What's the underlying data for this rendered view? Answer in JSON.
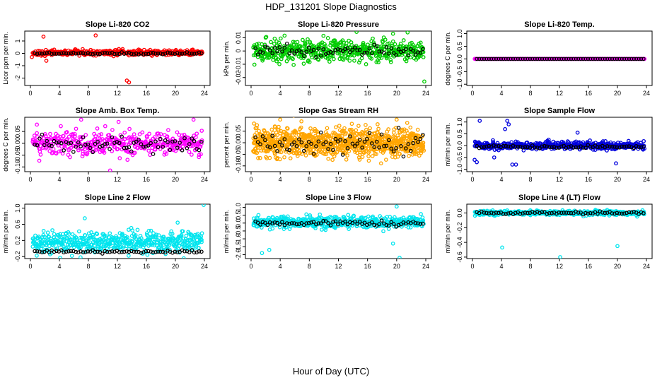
{
  "page": {
    "title": "HDP_131201  Slope Diagnostics",
    "x_label": "Hour of Day (UTC)"
  },
  "chart_data": [
    {
      "type": "scatter",
      "title": "Slope Li-820 CO2",
      "ylabel": "Licor ppm per min.",
      "xlim": [
        0,
        24
      ],
      "ylim": [
        -2.6,
        1.8
      ],
      "yticks": [
        -2,
        -1,
        0,
        1
      ],
      "ytick_labels": [
        "-2",
        "-1",
        "0",
        "1"
      ],
      "xticks": [
        0,
        4,
        8,
        12,
        16,
        20,
        24
      ],
      "xtick_labels": [
        "0",
        "4",
        "8",
        "12",
        "16",
        "20",
        "24"
      ],
      "color": "#ff0000",
      "noise": {
        "n": 420,
        "spread": 0.18,
        "center": 0.05
      },
      "outliers": [
        [
          1.8,
          1.35
        ],
        [
          9.0,
          1.45
        ],
        [
          2.2,
          -0.6
        ],
        [
          13.3,
          -2.2
        ],
        [
          13.6,
          -2.35
        ],
        [
          0.2,
          -0.3
        ]
      ],
      "black_points": {
        "n": 70,
        "spread": 0.07,
        "center": 0.0
      }
    },
    {
      "type": "scatter",
      "title": "Slope Li-820 Pressure",
      "ylabel": "kPa per min.",
      "xlim": [
        0,
        24
      ],
      "ylim": [
        -0.026,
        0.015
      ],
      "yticks": [
        -0.02,
        -0.01,
        0,
        0.01
      ],
      "ytick_labels": [
        "-0.02",
        "-0.01",
        "0",
        "0.01"
      ],
      "xticks": [
        0,
        4,
        8,
        12,
        16,
        20,
        24
      ],
      "xtick_labels": [
        "0",
        "4",
        "8",
        "12",
        "16",
        "20",
        "24"
      ],
      "color": "#00cc00",
      "noise": {
        "n": 520,
        "spread": 0.0065,
        "center": 0.0
      },
      "outliers": [
        [
          23.8,
          -0.023
        ],
        [
          21.5,
          0.014
        ],
        [
          19.5,
          0.013
        ]
      ],
      "black_points": {
        "n": 70,
        "spread": 0.0035,
        "center": 0.0
      }
    },
    {
      "type": "scatter",
      "title": "Slope Li-820 Temp.",
      "ylabel": "degrees C per min.",
      "xlim": [
        0,
        24
      ],
      "ylim": [
        -1.05,
        1.1
      ],
      "yticks": [
        -1.0,
        -0.5,
        0.0,
        0.5,
        1.0
      ],
      "ytick_labels": [
        "-1.0",
        "-0.5",
        "0.0",
        "0.5",
        "1.0"
      ],
      "xticks": [
        0,
        4,
        8,
        12,
        16,
        20,
        24
      ],
      "xtick_labels": [
        "0",
        "4",
        "8",
        "12",
        "16",
        "20",
        "24"
      ],
      "color": "#ff00ff",
      "noise": {
        "n": 240,
        "spread": 0.0,
        "center": 0.0
      },
      "outliers": [],
      "black_points": {
        "n": 70,
        "spread": 0.0,
        "center": 0.0
      }
    },
    {
      "type": "scatter",
      "title": "Slope Amb. Box Temp.",
      "ylabel": "degrees C per min.",
      "xlim": [
        0,
        24
      ],
      "ylim": [
        -0.12,
        0.11
      ],
      "yticks": [
        -0.1,
        -0.05,
        0.0,
        0.05
      ],
      "ytick_labels": [
        "-0.10",
        "-0.05",
        "0.00",
        "0.05"
      ],
      "xticks": [
        0,
        4,
        8,
        12,
        16,
        20,
        24
      ],
      "xtick_labels": [
        "0",
        "4",
        "8",
        "12",
        "16",
        "20",
        "24"
      ],
      "color": "#ff00ff",
      "noise": {
        "n": 420,
        "spread": 0.045,
        "center": 0.0
      },
      "outliers": [
        [
          11.0,
          -0.115
        ],
        [
          7.0,
          0.1
        ],
        [
          22.5,
          0.1
        ]
      ],
      "black_points": {
        "n": 70,
        "spread": 0.03,
        "center": -0.005
      }
    },
    {
      "type": "scatter",
      "title": "Slope Gas Stream RH",
      "ylabel": "percent per min.",
      "xlim": [
        0,
        24
      ],
      "ylim": [
        -0.125,
        0.11
      ],
      "yticks": [
        -0.1,
        -0.05,
        0.0,
        0.05
      ],
      "ytick_labels": [
        "-0.10",
        "-0.05",
        "0.00",
        "0.05"
      ],
      "xticks": [
        0,
        4,
        8,
        12,
        16,
        20,
        24
      ],
      "xtick_labels": [
        "0",
        "4",
        "8",
        "12",
        "16",
        "20",
        "24"
      ],
      "color": "#ffa500",
      "noise": {
        "n": 900,
        "spread": 0.05,
        "center": 0.0
      },
      "outliers": [
        [
          4.0,
          0.1
        ],
        [
          20.0,
          0.1
        ]
      ],
      "black_points": {
        "n": 70,
        "spread": 0.04,
        "center": -0.01
      }
    },
    {
      "type": "scatter",
      "title": "Slope Sample Flow",
      "ylabel": "ml/min per min.",
      "xlim": [
        0,
        24
      ],
      "ylim": [
        -1.1,
        1.2
      ],
      "yticks": [
        -1.0,
        -0.5,
        0.0,
        0.5,
        1.0
      ],
      "ytick_labels": [
        "-1.0",
        "-0.5",
        "0.0",
        "0.5",
        "1.0"
      ],
      "xticks": [
        0,
        4,
        8,
        12,
        16,
        20,
        24
      ],
      "xtick_labels": [
        "0",
        "4",
        "8",
        "12",
        "16",
        "20",
        "24"
      ],
      "color": "#0000dd",
      "noise": {
        "n": 480,
        "spread": 0.13,
        "center": 0.0
      },
      "outliers": [
        [
          1.0,
          1.05
        ],
        [
          4.8,
          1.05
        ],
        [
          5.0,
          0.9
        ],
        [
          4.5,
          0.7
        ],
        [
          0.3,
          -0.6
        ],
        [
          0.6,
          -0.7
        ],
        [
          5.5,
          -0.8
        ],
        [
          6.0,
          -0.8
        ],
        [
          19.8,
          -0.75
        ],
        [
          3.0,
          -0.5
        ],
        [
          14.5,
          0.55
        ]
      ],
      "black_points": {
        "n": 70,
        "spread": 0.05,
        "center": -0.05
      }
    },
    {
      "type": "scatter",
      "title": "Slope Line 2 Flow",
      "ylabel": "ml/min per min.",
      "xlim": [
        0,
        24
      ],
      "ylim": [
        -0.25,
        1.1
      ],
      "yticks": [
        -0.2,
        0.2,
        0.6,
        1.0
      ],
      "ytick_labels": [
        "-0.2",
        "0.2",
        "0.6",
        "1.0"
      ],
      "xticks": [
        0,
        4,
        8,
        12,
        16,
        20,
        24
      ],
      "xtick_labels": [
        "0",
        "4",
        "8",
        "12",
        "16",
        "20",
        "24"
      ],
      "color": "#00e5ee",
      "noise": {
        "n": 520,
        "spread": 0.22,
        "center": 0.15
      },
      "outliers": [
        [
          4.1,
          -0.23
        ],
        [
          23.9,
          1.08
        ],
        [
          7.5,
          0.75
        ]
      ],
      "black_points": {
        "n": 70,
        "spread": 0.03,
        "center": -0.08
      }
    },
    {
      "type": "scatter",
      "title": "Slope Line 3 Flow",
      "ylabel": "ml/min per min.",
      "xlim": [
        0,
        24
      ],
      "ylim": [
        -2.25,
        1.2
      ],
      "yticks": [
        -2.0,
        -1.5,
        -1.0,
        -0.5,
        0.0,
        0.5,
        1.0
      ],
      "ytick_labels": [
        "-2.0",
        "-1.5",
        "-1.0",
        "-0.5",
        "0.0",
        "0.5",
        "1.0"
      ],
      "xticks": [
        0,
        4,
        8,
        12,
        16,
        20,
        24
      ],
      "xtick_labels": [
        "0",
        "4",
        "8",
        "12",
        "16",
        "20",
        "24"
      ],
      "color": "#00e5ee",
      "noise": {
        "n": 520,
        "spread": 0.3,
        "center": 0.05
      },
      "outliers": [
        [
          20.4,
          -2.2
        ],
        [
          20.0,
          1.05
        ],
        [
          2.5,
          -1.7
        ],
        [
          1.5,
          -1.9
        ],
        [
          19.5,
          -1.3
        ]
      ],
      "black_points": {
        "n": 70,
        "spread": 0.15,
        "center": 0.0
      }
    },
    {
      "type": "scatter",
      "title": "Slope Line 4 (LT) Flow",
      "ylabel": "ml/min per min.",
      "xlim": [
        0,
        24
      ],
      "ylim": [
        -0.62,
        0.12
      ],
      "yticks": [
        -0.6,
        -0.4,
        -0.2,
        0.0
      ],
      "ytick_labels": [
        "-0.6",
        "-0.4",
        "-0.2",
        "0.0"
      ],
      "xticks": [
        0,
        4,
        8,
        12,
        16,
        20,
        24
      ],
      "xtick_labels": [
        "0",
        "4",
        "8",
        "12",
        "16",
        "20",
        "24"
      ],
      "color": "#00e5ee",
      "noise": {
        "n": 420,
        "spread": 0.025,
        "center": 0.0
      },
      "outliers": [
        [
          4.1,
          -0.47
        ],
        [
          12.1,
          -0.6
        ],
        [
          20.0,
          -0.45
        ]
      ],
      "black_points": {
        "n": 70,
        "spread": 0.015,
        "center": 0.0
      }
    }
  ]
}
